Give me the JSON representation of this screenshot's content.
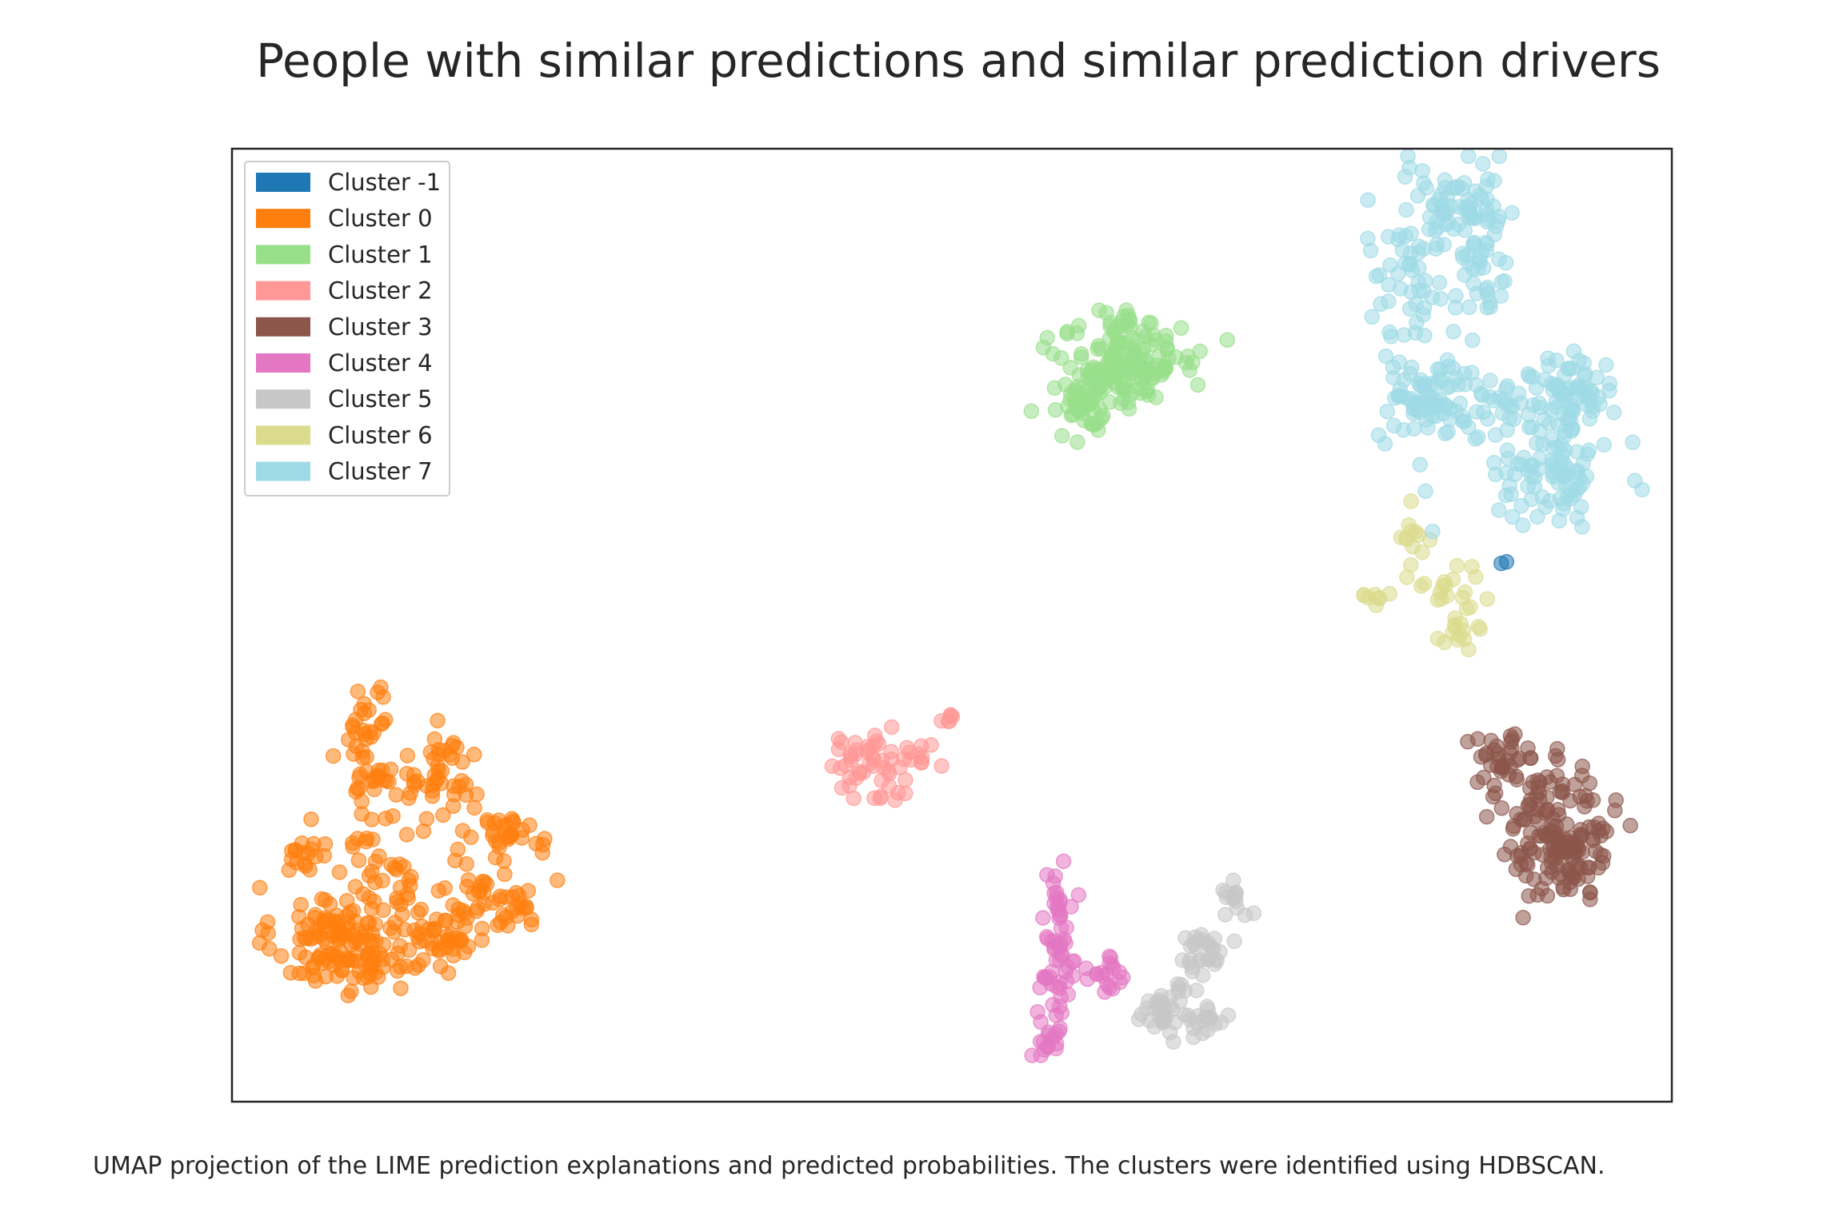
{
  "chart_data": {
    "type": "scatter",
    "title": "People with similar predictions and similar prediction drivers",
    "caption": "UMAP projection of the LIME prediction explanations and predicted probabilities. The clusters were identified using HDBSCAN.",
    "xlabel": "",
    "ylabel": "",
    "xticks": [],
    "yticks": [],
    "grid": false,
    "legend_position": "top-left",
    "marker_opacity": 0.55,
    "xlim": [
      0,
      100
    ],
    "ylim": [
      0,
      100
    ],
    "series": [
      {
        "name": "Cluster -1",
        "color": "#1f77b4",
        "blobs": [
          {
            "cx": 88.0,
            "cy": 56.5,
            "sx": 0.3,
            "sy": 0.3,
            "n": 2
          }
        ]
      },
      {
        "name": "Cluster 0",
        "color": "#ff7f0e",
        "blobs": [
          {
            "cx": 7.5,
            "cy": 17.0,
            "sx": 2.3,
            "sy": 2.8,
            "n": 140
          },
          {
            "cx": 5.5,
            "cy": 25.5,
            "sx": 0.9,
            "sy": 1.6,
            "n": 20
          },
          {
            "cx": 9.3,
            "cy": 38.0,
            "sx": 0.8,
            "sy": 4.2,
            "n": 45
          },
          {
            "cx": 14.5,
            "cy": 33.5,
            "sx": 1.6,
            "sy": 2.4,
            "n": 50
          },
          {
            "cx": 19.3,
            "cy": 28.5,
            "sx": 1.1,
            "sy": 0.9,
            "n": 25
          },
          {
            "cx": 17.0,
            "cy": 22.0,
            "sx": 2.2,
            "sy": 3.8,
            "n": 50
          },
          {
            "cx": 14.0,
            "cy": 16.5,
            "sx": 1.8,
            "sy": 1.4,
            "n": 40
          },
          {
            "cx": 19.8,
            "cy": 20.5,
            "sx": 0.8,
            "sy": 1.2,
            "n": 15
          },
          {
            "cx": 11.0,
            "cy": 26.0,
            "sx": 1.4,
            "sy": 3.5,
            "n": 25
          }
        ]
      },
      {
        "name": "Cluster 1",
        "color": "#98df8a",
        "blobs": [
          {
            "cx": 61.5,
            "cy": 77.0,
            "sx": 1.9,
            "sy": 2.0,
            "n": 110
          },
          {
            "cx": 59.0,
            "cy": 72.5,
            "sx": 1.2,
            "sy": 1.6,
            "n": 40
          },
          {
            "cx": 64.5,
            "cy": 78.5,
            "sx": 1.6,
            "sy": 1.4,
            "n": 35
          },
          {
            "cx": 62.0,
            "cy": 82.0,
            "sx": 1.0,
            "sy": 0.6,
            "n": 15
          }
        ]
      },
      {
        "name": "Cluster 2",
        "color": "#ff9896",
        "blobs": [
          {
            "cx": 44.0,
            "cy": 35.0,
            "sx": 1.3,
            "sy": 1.7,
            "n": 45
          },
          {
            "cx": 47.2,
            "cy": 36.3,
            "sx": 0.9,
            "sy": 0.9,
            "n": 14
          },
          {
            "cx": 49.7,
            "cy": 40.3,
            "sx": 0.3,
            "sy": 0.4,
            "n": 6
          }
        ]
      },
      {
        "name": "Cluster 3",
        "color": "#8c564b",
        "blobs": [
          {
            "cx": 92.3,
            "cy": 28.0,
            "sx": 1.7,
            "sy": 3.5,
            "n": 160
          },
          {
            "cx": 88.3,
            "cy": 35.5,
            "sx": 1.2,
            "sy": 2.0,
            "n": 40
          }
        ]
      },
      {
        "name": "Cluster 4",
        "color": "#e377c2",
        "blobs": [
          {
            "cx": 57.5,
            "cy": 14.5,
            "sx": 0.7,
            "sy": 3.8,
            "n": 55
          },
          {
            "cx": 60.7,
            "cy": 13.0,
            "sx": 0.7,
            "sy": 1.3,
            "n": 18
          },
          {
            "cx": 56.5,
            "cy": 6.0,
            "sx": 0.5,
            "sy": 1.0,
            "n": 12
          },
          {
            "cx": 57.3,
            "cy": 21.5,
            "sx": 0.3,
            "sy": 1.3,
            "n": 10
          }
        ]
      },
      {
        "name": "Cluster 5",
        "color": "#c7c7c7",
        "blobs": [
          {
            "cx": 65.0,
            "cy": 9.5,
            "sx": 1.0,
            "sy": 1.2,
            "n": 45
          },
          {
            "cx": 67.3,
            "cy": 15.5,
            "sx": 0.9,
            "sy": 1.5,
            "n": 28
          },
          {
            "cx": 69.5,
            "cy": 20.5,
            "sx": 0.7,
            "sy": 1.4,
            "n": 14
          },
          {
            "cx": 68.5,
            "cy": 9.0,
            "sx": 0.5,
            "sy": 0.8,
            "n": 10
          }
        ]
      },
      {
        "name": "Cluster 6",
        "color": "#dbdb8d",
        "blobs": [
          {
            "cx": 82.3,
            "cy": 59.0,
            "sx": 0.5,
            "sy": 1.8,
            "n": 15
          },
          {
            "cx": 84.8,
            "cy": 54.0,
            "sx": 1.2,
            "sy": 1.0,
            "n": 15
          },
          {
            "cx": 85.3,
            "cy": 49.0,
            "sx": 0.7,
            "sy": 1.6,
            "n": 15
          },
          {
            "cx": 79.5,
            "cy": 53.0,
            "sx": 0.5,
            "sy": 0.4,
            "n": 8
          }
        ]
      },
      {
        "name": "Cluster 7",
        "color": "#9edae5",
        "blobs": [
          {
            "cx": 84.8,
            "cy": 94.0,
            "sx": 1.5,
            "sy": 1.8,
            "n": 50
          },
          {
            "cx": 87.0,
            "cy": 90.0,
            "sx": 1.0,
            "sy": 4.2,
            "n": 45
          },
          {
            "cx": 82.0,
            "cy": 87.5,
            "sx": 1.6,
            "sy": 4.5,
            "n": 55
          },
          {
            "cx": 83.5,
            "cy": 73.5,
            "sx": 2.0,
            "sy": 2.2,
            "n": 90
          },
          {
            "cx": 93.0,
            "cy": 74.0,
            "sx": 1.5,
            "sy": 2.3,
            "n": 70
          },
          {
            "cx": 92.0,
            "cy": 66.0,
            "sx": 2.2,
            "sy": 2.2,
            "n": 80
          },
          {
            "cx": 89.0,
            "cy": 72.0,
            "sx": 1.3,
            "sy": 1.5,
            "n": 25
          }
        ]
      }
    ]
  }
}
